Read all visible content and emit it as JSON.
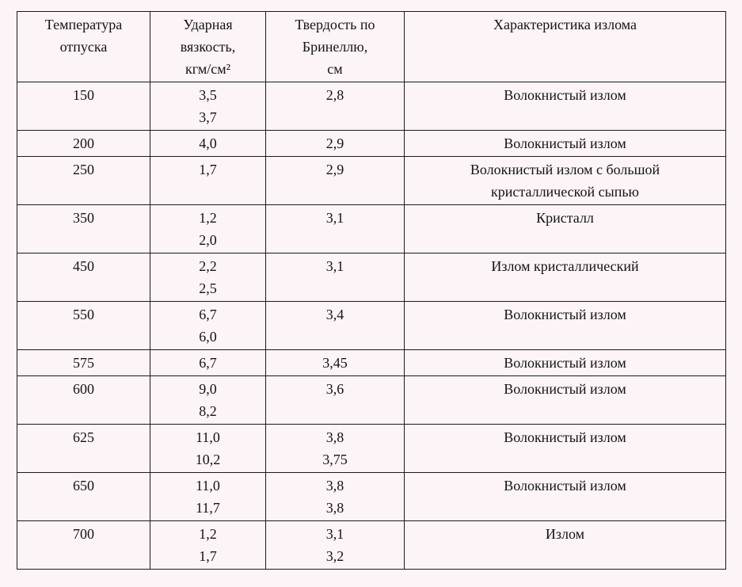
{
  "page": {
    "background_color": "#fcf4f6",
    "border_color": "#1b1b1b",
    "text_color": "#141414"
  },
  "table": {
    "headers": {
      "temperature": "Температура\nотпуска",
      "toughness": "Ударная\nвязкость,\nкгм/см²",
      "hardness": "Твердость по\nБринеллю,\nсм",
      "fracture": "Характеристика излома"
    },
    "rows": [
      {
        "temperature": "150",
        "toughness": "3,5\n3,7",
        "hardness": "2,8",
        "fracture": "Волокнистый излом"
      },
      {
        "temperature": "200",
        "toughness": "4,0",
        "hardness": "2,9",
        "fracture": "Волокнистый излом"
      },
      {
        "temperature": "250",
        "toughness": "1,7",
        "hardness": "2,9",
        "fracture": "Волокнистый излом с большой\nкристаллической сыпью"
      },
      {
        "temperature": "350",
        "toughness": "1,2\n2,0",
        "hardness": "3,1",
        "fracture": "Кристалл"
      },
      {
        "temperature": "450",
        "toughness": "2,2\n2,5",
        "hardness": "3,1",
        "fracture": "Излом кристаллический"
      },
      {
        "temperature": "550",
        "toughness": "6,7\n6,0",
        "hardness": "3,4",
        "fracture": "Волокнистый излом"
      },
      {
        "temperature": "575",
        "toughness": "6,7",
        "hardness": "3,45",
        "fracture": "Волокнистый излом"
      },
      {
        "temperature": "600",
        "toughness": "9,0\n8,2",
        "hardness": "3,6",
        "fracture": "Волокнистый излом"
      },
      {
        "temperature": "625",
        "toughness": "11,0\n10,2",
        "hardness": "3,8\n3,75",
        "fracture": "Волокнистый излом"
      },
      {
        "temperature": "650",
        "toughness": "11,0\n11,7",
        "hardness": "3,8\n3,8",
        "fracture": "Волокнистый излом"
      },
      {
        "temperature": "700",
        "toughness": "1,2\n1,7",
        "hardness": "3,1\n3,2",
        "fracture": "Излом"
      }
    ]
  }
}
